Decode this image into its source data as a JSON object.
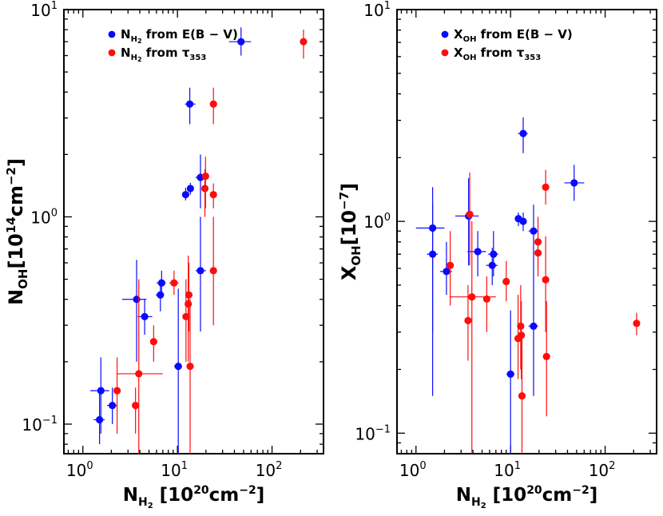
{
  "colors": {
    "blue": "#0a0aff",
    "red": "#ff0d0d",
    "axis": "#000000"
  },
  "panels": [
    {
      "id": "left",
      "ylabel_main": "N",
      "ylabel_sub": "OH",
      "ylabel_unit": "[10",
      "ylabel_exp": "14",
      "ylabel_unit2": "cm",
      "ylabel_exp2": "−2",
      "ylabel_close": "]",
      "xlabel_main": "N",
      "xlabel_sub": "H",
      "xlabel_subsub": "2",
      "xlabel_unit": " [10",
      "xlabel_exp": "20",
      "xlabel_unit2": "cm",
      "xlabel_exp2": "−2",
      "xlabel_close": "]",
      "xlim": [
        0.63,
        350
      ],
      "ylim": [
        0.072,
        10
      ],
      "xticks": [
        {
          "v": 1,
          "base": "10",
          "exp": "0"
        },
        {
          "v": 10,
          "base": "10",
          "exp": "1"
        },
        {
          "v": 100,
          "base": "10",
          "exp": "2"
        }
      ],
      "yticks": [
        {
          "v": 0.1,
          "base": "10",
          "exp": "−1"
        },
        {
          "v": 1,
          "base": "10",
          "exp": "0"
        },
        {
          "v": 10,
          "base": "10",
          "exp": "1"
        }
      ],
      "legend": [
        {
          "color_key": "blue",
          "quantity": "N",
          "sub": "H",
          "subsub": "2",
          "source": " from E(B − V)"
        },
        {
          "color_key": "red",
          "quantity": "N",
          "sub": "H",
          "subsub": "2",
          "source": " from τ",
          "source_sub": "353"
        }
      ],
      "series": [
        {
          "name": "NH2 from E(B-V)",
          "color_key": "blue",
          "points": [
            {
              "x": 1.55,
              "y": 0.145,
              "xerr": [
                1.2,
                1.9
              ],
              "yerr": [
                0.09,
                0.21
              ]
            },
            {
              "x": 1.5,
              "y": 0.105,
              "xerr": [
                1.3,
                1.7
              ],
              "yerr": [
                0.08,
                0.15
              ]
            },
            {
              "x": 2.05,
              "y": 0.123,
              "xerr": [
                1.8,
                2.3
              ],
              "yerr": [
                0.1,
                0.15
              ]
            },
            {
              "x": 3.7,
              "y": 0.4,
              "xerr": [
                2.6,
                4.7
              ],
              "yerr": [
                0.2,
                0.62
              ]
            },
            {
              "x": 4.5,
              "y": 0.33,
              "xerr": [
                3.8,
                5.4
              ],
              "yerr": [
                0.27,
                0.4
              ]
            },
            {
              "x": 6.6,
              "y": 0.42,
              "xerr": [
                5.9,
                7.2
              ],
              "yerr": [
                0.35,
                0.5
              ]
            },
            {
              "x": 6.8,
              "y": 0.48,
              "xerr": [
                6.0,
                7.5
              ],
              "yerr": [
                0.42,
                0.55
              ]
            },
            {
              "x": 10.2,
              "y": 0.19,
              "xerr": [
                9.2,
                11.2
              ],
              "yerr": [
                0.072,
                0.45
              ]
            },
            {
              "x": 12.2,
              "y": 1.28,
              "xerr": [
                11.3,
                13.2
              ],
              "yerr": [
                1.2,
                1.38
              ]
            },
            {
              "x": 13.7,
              "y": 1.37,
              "xerr": [
                12.8,
                14.6
              ],
              "yerr": [
                1.28,
                1.46
              ]
            },
            {
              "x": 13.5,
              "y": 3.5,
              "xerr": [
                12.0,
                15.5
              ],
              "yerr": [
                2.8,
                4.2
              ]
            },
            {
              "x": 17.5,
              "y": 1.55,
              "xerr": [
                15.5,
                20
              ],
              "yerr": [
                1.1,
                2.0
              ]
            },
            {
              "x": 17.5,
              "y": 0.55,
              "xerr": [
                15.5,
                20
              ],
              "yerr": [
                0.28,
                1.0
              ]
            },
            {
              "x": 47,
              "y": 7.0,
              "xerr": [
                35,
                60
              ],
              "yerr": [
                6.0,
                8.2
              ]
            }
          ]
        },
        {
          "name": "NH2 from tau353",
          "color_key": "red",
          "points": [
            {
              "x": 2.3,
              "y": 0.145,
              "xerr": [
                2.15,
                2.45
              ],
              "yerr": [
                0.09,
                0.21
              ]
            },
            {
              "x": 3.6,
              "y": 0.123,
              "xerr": [
                3.4,
                3.8
              ],
              "yerr": [
                0.09,
                0.15
              ]
            },
            {
              "x": 3.9,
              "y": 0.175,
              "xerr": [
                2.3,
                7.0
              ],
              "yerr": [
                0.072,
                0.5
              ]
            },
            {
              "x": 5.6,
              "y": 0.25,
              "xerr": [
                5.2,
                6.0
              ],
              "yerr": [
                0.2,
                0.3
              ]
            },
            {
              "x": 9.2,
              "y": 0.48,
              "xerr": [
                8.2,
                10.3
              ],
              "yerr": [
                0.42,
                0.55
              ]
            },
            {
              "x": 12.3,
              "y": 0.33,
              "xerr": [
                11.8,
                12.8
              ],
              "yerr": [
                0.2,
                0.5
              ]
            },
            {
              "x": 13.0,
              "y": 0.38,
              "xerr": [
                12.4,
                13.6
              ],
              "yerr": [
                0.2,
                0.65
              ]
            },
            {
              "x": 13.2,
              "y": 0.42,
              "xerr": [
                12.6,
                13.8
              ],
              "yerr": [
                0.28,
                0.6
              ]
            },
            {
              "x": 13.6,
              "y": 0.19,
              "xerr": [
                13.0,
                14.2
              ],
              "yerr": [
                0.072,
                0.4
              ]
            },
            {
              "x": 19.5,
              "y": 1.37,
              "xerr": [
                18.5,
                20.5
              ],
              "yerr": [
                1.0,
                1.7
              ]
            },
            {
              "x": 19.8,
              "y": 1.57,
              "xerr": [
                18.8,
                20.8
              ],
              "yerr": [
                1.1,
                1.95
              ]
            },
            {
              "x": 24,
              "y": 1.28,
              "xerr": [
                23,
                25
              ],
              "yerr": [
                1.1,
                1.45
              ]
            },
            {
              "x": 24,
              "y": 0.55,
              "xerr": [
                23,
                25
              ],
              "yerr": [
                0.3,
                1.0
              ]
            },
            {
              "x": 24,
              "y": 3.5,
              "xerr": [
                23,
                25
              ],
              "yerr": [
                2.8,
                4.2
              ]
            },
            {
              "x": 215,
              "y": 7.0,
              "xerr": [
                205,
                225
              ],
              "yerr": [
                5.8,
                8.0
              ]
            }
          ]
        }
      ]
    },
    {
      "id": "right",
      "ylabel_main": "X",
      "ylabel_sub": "OH",
      "ylabel_unit": "[10",
      "ylabel_exp": "−7",
      "ylabel_close": "]",
      "xlabel_main": "N",
      "xlabel_sub": "H",
      "xlabel_subsub": "2",
      "xlabel_unit": " [10",
      "xlabel_exp": "20",
      "xlabel_unit2": "cm",
      "xlabel_exp2": "−2",
      "xlabel_close": "]",
      "xlim": [
        0.63,
        350
      ],
      "ylim": [
        0.08,
        10
      ],
      "xticks": [
        {
          "v": 1,
          "base": "10",
          "exp": "0"
        },
        {
          "v": 10,
          "base": "10",
          "exp": "1"
        },
        {
          "v": 100,
          "base": "10",
          "exp": "2"
        }
      ],
      "yticks": [
        {
          "v": 0.1,
          "base": "10",
          "exp": "−1"
        },
        {
          "v": 1,
          "base": "10",
          "exp": "0"
        },
        {
          "v": 10,
          "base": "10",
          "exp": "1"
        }
      ],
      "legend": [
        {
          "color_key": "blue",
          "quantity": "X",
          "sub": "OH",
          "subsub": "",
          "source": " from E(B − V)"
        },
        {
          "color_key": "red",
          "quantity": "X",
          "sub": "OH",
          "subsub": "",
          "source": " from τ",
          "source_sub": "353"
        }
      ],
      "series": [
        {
          "name": "XOH from E(B-V)",
          "color_key": "blue",
          "points": [
            {
              "x": 1.5,
              "y": 0.93,
              "xerr": [
                1.0,
                2.0
              ],
              "yerr": [
                0.15,
                1.45
              ]
            },
            {
              "x": 1.5,
              "y": 0.7,
              "xerr": [
                1.3,
                1.7
              ],
              "yerr": [
                0.3,
                1.2
              ]
            },
            {
              "x": 2.1,
              "y": 0.58,
              "xerr": [
                1.8,
                2.4
              ],
              "yerr": [
                0.45,
                0.8
              ]
            },
            {
              "x": 3.6,
              "y": 1.06,
              "xerr": [
                2.6,
                4.6
              ],
              "yerr": [
                0.62,
                1.6
              ]
            },
            {
              "x": 4.5,
              "y": 0.72,
              "xerr": [
                3.5,
                5.5
              ],
              "yerr": [
                0.55,
                0.9
              ]
            },
            {
              "x": 6.4,
              "y": 0.62,
              "xerr": [
                5.5,
                7.3
              ],
              "yerr": [
                0.5,
                0.75
              ]
            },
            {
              "x": 6.6,
              "y": 0.7,
              "xerr": [
                5.8,
                7.4
              ],
              "yerr": [
                0.55,
                0.9
              ]
            },
            {
              "x": 10.0,
              "y": 0.19,
              "xerr": [
                9.0,
                11.0
              ],
              "yerr": [
                0.08,
                0.38
              ]
            },
            {
              "x": 12.1,
              "y": 1.03,
              "xerr": [
                11.2,
                13.0
              ],
              "yerr": [
                0.95,
                1.1
              ]
            },
            {
              "x": 13.6,
              "y": 1.0,
              "xerr": [
                12.5,
                14.7
              ],
              "yerr": [
                0.9,
                1.1
              ]
            },
            {
              "x": 13.6,
              "y": 2.6,
              "xerr": [
                12.0,
                15.2
              ],
              "yerr": [
                2.1,
                3.1
              ]
            },
            {
              "x": 17.5,
              "y": 0.9,
              "xerr": [
                15.5,
                19.5
              ],
              "yerr": [
                0.6,
                1.2
              ]
            },
            {
              "x": 17.5,
              "y": 0.32,
              "xerr": [
                15.5,
                19.5
              ],
              "yerr": [
                0.15,
                0.6
              ]
            },
            {
              "x": 47,
              "y": 1.52,
              "xerr": [
                37,
                60
              ],
              "yerr": [
                1.25,
                1.85
              ]
            }
          ]
        },
        {
          "name": "XOH from tau353",
          "color_key": "red",
          "points": [
            {
              "x": 2.3,
              "y": 0.62,
              "xerr": [
                2.15,
                2.45
              ],
              "yerr": [
                0.4,
                0.9
              ]
            },
            {
              "x": 3.55,
              "y": 0.34,
              "xerr": [
                3.35,
                3.75
              ],
              "yerr": [
                0.22,
                0.5
              ]
            },
            {
              "x": 3.7,
              "y": 1.08,
              "xerr": [
                3.5,
                3.9
              ],
              "yerr": [
                0.62,
                1.7
              ]
            },
            {
              "x": 3.9,
              "y": 0.44,
              "xerr": [
                2.3,
                7.0
              ],
              "yerr": [
                0.08,
                1.0
              ]
            },
            {
              "x": 5.6,
              "y": 0.43,
              "xerr": [
                5.2,
                6.0
              ],
              "yerr": [
                0.3,
                0.55
              ]
            },
            {
              "x": 9.0,
              "y": 0.52,
              "xerr": [
                8.2,
                9.8
              ],
              "yerr": [
                0.42,
                0.65
              ]
            },
            {
              "x": 12.0,
              "y": 0.28,
              "xerr": [
                11.5,
                12.5
              ],
              "yerr": [
                0.18,
                0.45
              ]
            },
            {
              "x": 12.8,
              "y": 0.32,
              "xerr": [
                12.3,
                13.3
              ],
              "yerr": [
                0.2,
                0.5
              ]
            },
            {
              "x": 13.0,
              "y": 0.29,
              "xerr": [
                12.5,
                13.5
              ],
              "yerr": [
                0.18,
                0.42
              ]
            },
            {
              "x": 13.2,
              "y": 0.15,
              "xerr": [
                12.7,
                13.7
              ],
              "yerr": [
                0.08,
                0.28
              ]
            },
            {
              "x": 19.5,
              "y": 0.8,
              "xerr": [
                18.6,
                20.4
              ],
              "yerr": [
                0.6,
                1.05
              ]
            },
            {
              "x": 19.5,
              "y": 0.71,
              "xerr": [
                18.6,
                20.4
              ],
              "yerr": [
                0.55,
                0.9
              ]
            },
            {
              "x": 23.5,
              "y": 1.45,
              "xerr": [
                22.5,
                24.5
              ],
              "yerr": [
                1.2,
                1.75
              ]
            },
            {
              "x": 23.5,
              "y": 0.53,
              "xerr": [
                22.5,
                24.5
              ],
              "yerr": [
                0.3,
                0.85
              ]
            },
            {
              "x": 24,
              "y": 0.23,
              "xerr": [
                23,
                25
              ],
              "yerr": [
                0.12,
                0.42
              ]
            },
            {
              "x": 215,
              "y": 0.33,
              "xerr": [
                205,
                225
              ],
              "yerr": [
                0.29,
                0.37
              ]
            }
          ]
        }
      ]
    }
  ]
}
